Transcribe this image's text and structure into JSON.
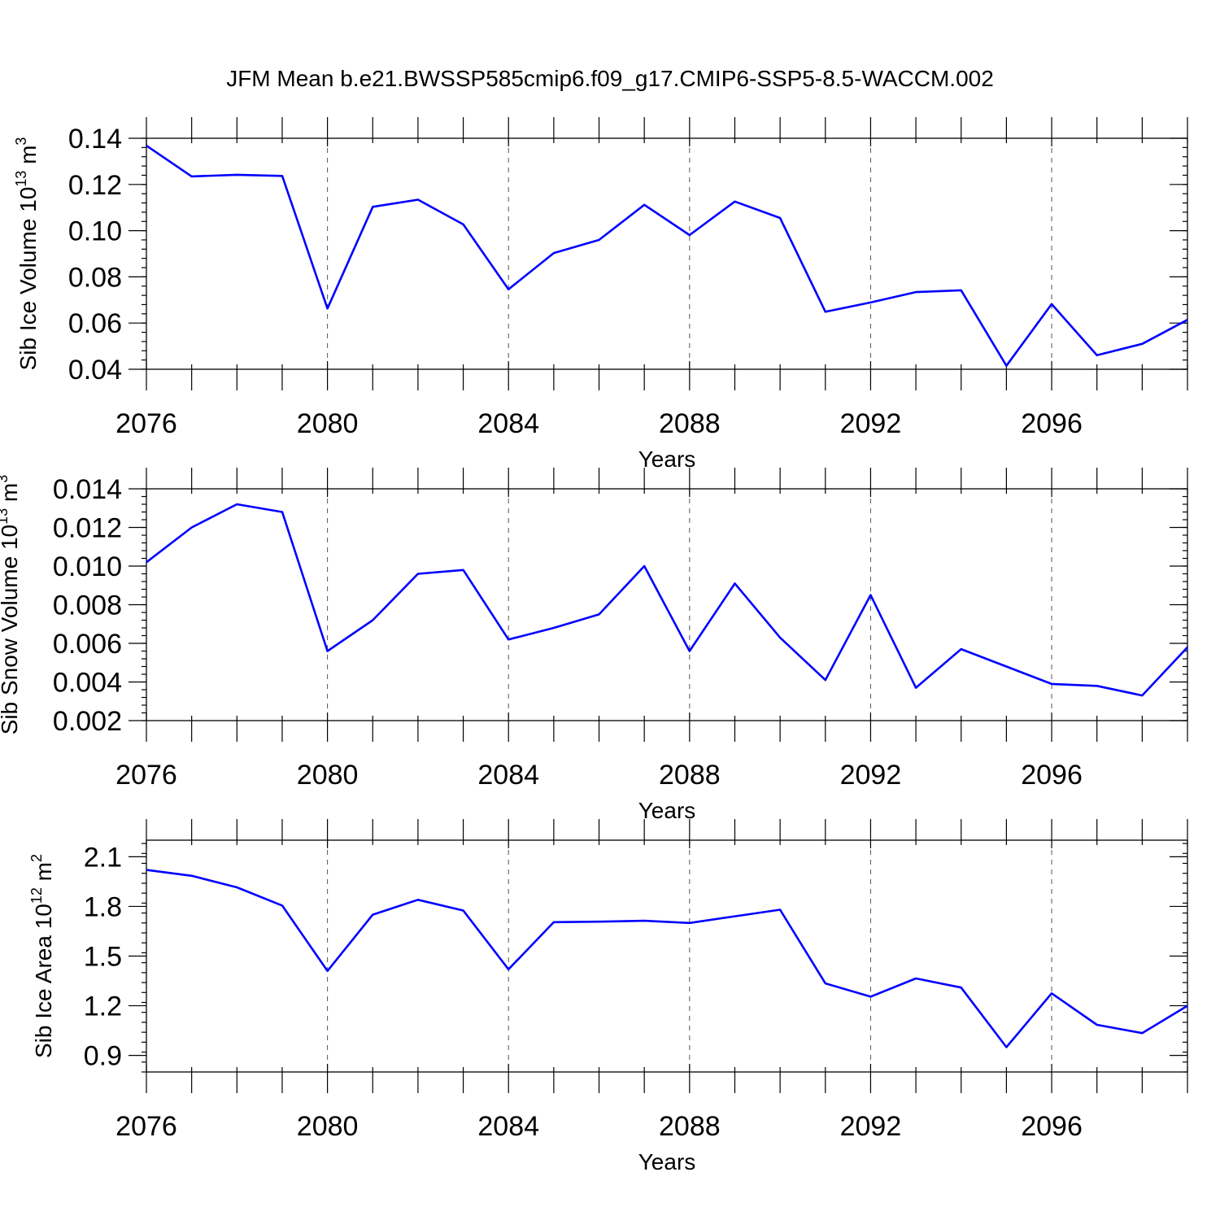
{
  "chart_data": {
    "title": "JFM Mean b.e21.BWSSP585cmip6.f09_g17.CMIP6-SSP5-8.5-WACCM.002",
    "panels": [
      {
        "type": "line",
        "ylabel": {
          "text": "Sib Ice Volume 10",
          "sup": "13",
          "unit": " m",
          "unit_sup": "3"
        },
        "xlabel": "Years",
        "xlim": [
          2076,
          2099
        ],
        "ylim": [
          0.04,
          0.14
        ],
        "xticks": [
          "2076",
          "2080",
          "2084",
          "2088",
          "2092",
          "2096"
        ],
        "yticks": [
          "0.04",
          "0.06",
          "0.08",
          "0.10",
          "0.12",
          "0.14"
        ],
        "series": [
          {
            "name": "Sib Ice Volume",
            "color": "#0000ff",
            "x": [
              2076,
              2077,
              2078,
              2079,
              2080,
              2081,
              2082,
              2083,
              2084,
              2085,
              2086,
              2087,
              2088,
              2089,
              2090,
              2091,
              2092,
              2093,
              2094,
              2095,
              2096,
              2097,
              2098,
              2099
            ],
            "values": [
              0.1368,
              0.1235,
              0.1242,
              0.1237,
              0.0663,
              0.1103,
              0.1134,
              0.1027,
              0.0746,
              0.0903,
              0.096,
              0.1112,
              0.0981,
              0.1126,
              0.1055,
              0.0649,
              0.0689,
              0.0734,
              0.0742,
              0.0415,
              0.0682,
              0.0461,
              0.051,
              0.0614
            ]
          }
        ]
      },
      {
        "type": "line",
        "ylabel": {
          "text": "Sib Snow Volume 10",
          "sup": "13",
          "unit": " m",
          "unit_sup": "3"
        },
        "xlabel": "Years",
        "xlim": [
          2076,
          2099
        ],
        "ylim": [
          0.002,
          0.014
        ],
        "xticks": [
          "2076",
          "2080",
          "2084",
          "2088",
          "2092",
          "2096"
        ],
        "yticks": [
          "0.002",
          "0.004",
          "0.006",
          "0.008",
          "0.010",
          "0.012",
          "0.014"
        ],
        "series": [
          {
            "name": "Sib Snow Volume",
            "color": "#0000ff",
            "x": [
              2076,
              2077,
              2078,
              2079,
              2080,
              2081,
              2082,
              2083,
              2084,
              2085,
              2086,
              2087,
              2088,
              2089,
              2090,
              2091,
              2092,
              2093,
              2094,
              2095,
              2096,
              2097,
              2098,
              2099
            ],
            "values": [
              0.0102,
              0.012,
              0.0132,
              0.0128,
              0.0056,
              0.0072,
              0.0096,
              0.0098,
              0.0062,
              0.0068,
              0.0075,
              0.01,
              0.0056,
              0.0091,
              0.0063,
              0.0041,
              0.0085,
              0.0037,
              0.0057,
              0.0048,
              0.0039,
              0.0038,
              0.0033,
              0.0058
            ]
          }
        ]
      },
      {
        "type": "line",
        "ylabel": {
          "text": "Sib Ice Area 10",
          "sup": "12",
          "unit": " m",
          "unit_sup": "2"
        },
        "xlabel": "Years",
        "xlim": [
          2076,
          2099
        ],
        "ylim": [
          0.8,
          2.2
        ],
        "xticks": [
          "2076",
          "2080",
          "2084",
          "2088",
          "2092",
          "2096"
        ],
        "yticks": [
          "0.9",
          "1.2",
          "1.5",
          "1.8",
          "2.1"
        ],
        "series": [
          {
            "name": "Sib Ice Area",
            "color": "#0000ff",
            "x": [
              2076,
              2077,
              2078,
              2079,
              2080,
              2081,
              2082,
              2083,
              2084,
              2085,
              2086,
              2087,
              2088,
              2089,
              2090,
              2091,
              2092,
              2093,
              2094,
              2095,
              2096,
              2097,
              2098,
              2099
            ],
            "values": [
              2.02,
              1.985,
              1.915,
              1.805,
              1.41,
              1.75,
              1.84,
              1.775,
              1.42,
              1.705,
              1.708,
              1.713,
              1.7,
              1.74,
              1.78,
              1.335,
              1.255,
              1.365,
              1.31,
              0.95,
              1.275,
              1.085,
              1.035,
              1.2
            ]
          }
        ]
      }
    ]
  }
}
